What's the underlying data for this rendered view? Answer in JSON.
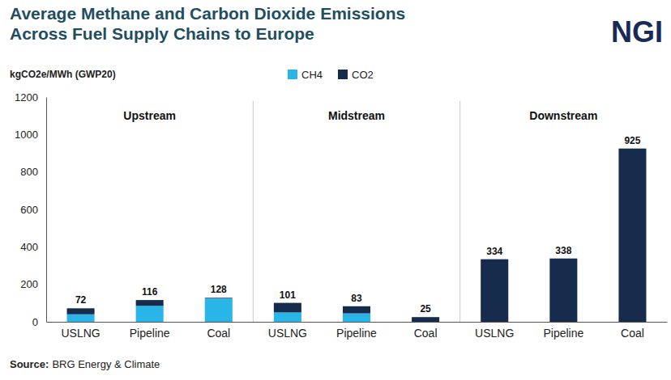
{
  "chart_data": {
    "type": "bar",
    "title": [
      "Average Methane and Carbon Dioxide Emissions",
      "Across Fuel Supply Chains to Europe"
    ],
    "logo": "NGI",
    "y_label": "kgCO2e/MWh (GWP20)",
    "source": {
      "label": "Source:",
      "text": "BRG Energy & Climate"
    },
    "groups": [
      "Upstream",
      "Midstream",
      "Downstream"
    ],
    "categories": [
      "USLNG",
      "Pipeline",
      "Coal",
      "USLNG",
      "Pipeline",
      "Coal",
      "USLNG",
      "Pipeline",
      "Coal"
    ],
    "series": [
      {
        "name": "CH4",
        "color": "#29b5e8",
        "values": [
          40,
          85,
          125,
          50,
          45,
          0,
          0,
          0,
          0
        ]
      },
      {
        "name": "CO2",
        "color": "#172b4d",
        "values": [
          32,
          31,
          3,
          51,
          38,
          25,
          334,
          338,
          925
        ]
      }
    ],
    "totals": [
      72,
      116,
      128,
      101,
      83,
      25,
      334,
      338,
      925
    ],
    "stacked": true,
    "legend": "top",
    "grid": false,
    "ylim": [
      0,
      1200
    ],
    "yticks": [
      0,
      200,
      400,
      600,
      800,
      1000,
      1200
    ]
  }
}
